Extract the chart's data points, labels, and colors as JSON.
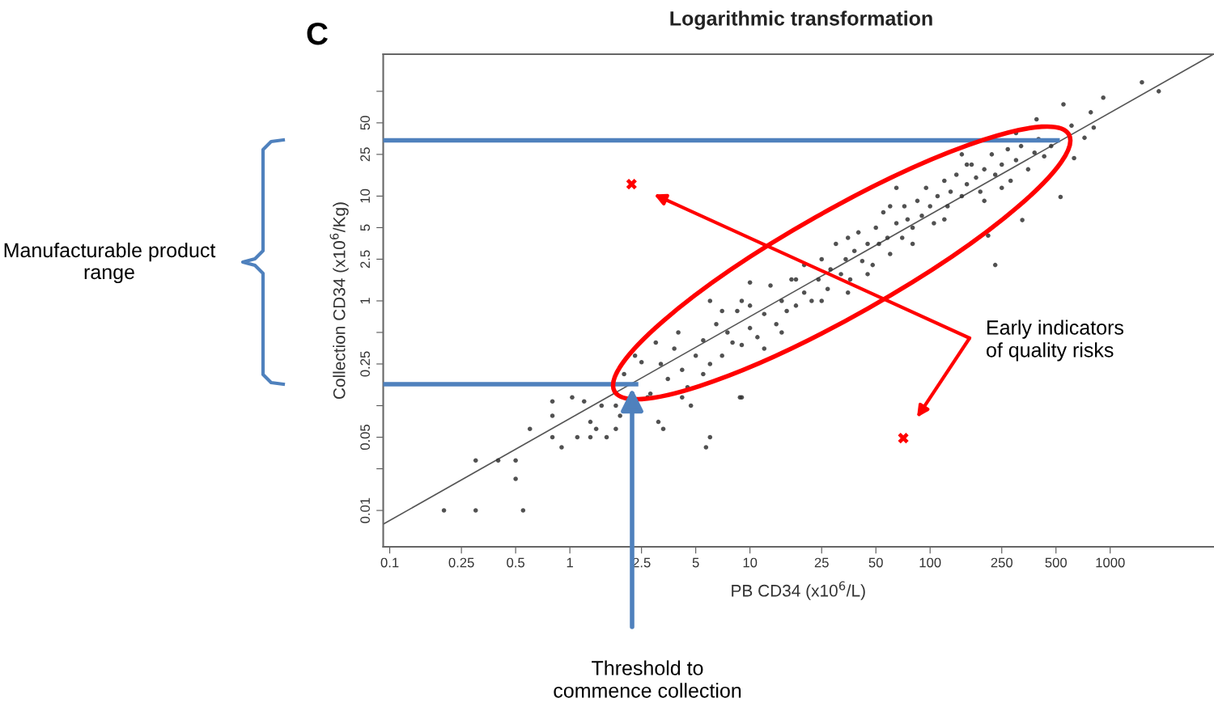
{
  "chart_data": {
    "type": "scatter",
    "title": "Logarithmic transformation",
    "xlabel": "PB CD34 (x10$^{6}$/L)",
    "ylabel": "Collection CD34 (x10$^{6}$/Kg)",
    "log": "xy",
    "grid": false,
    "legend": false,
    "marker": "circle",
    "xlim": [
      0.092,
      3740
    ],
    "ylim": [
      0.0045,
      226
    ],
    "xticks": [
      0.1,
      0.25,
      0.5,
      1,
      2.5,
      5,
      10,
      25,
      50,
      100,
      250,
      500,
      1000
    ],
    "yticks": [
      0.01,
      {
        "value": 0.025,
        "label": null
      },
      0.05,
      {
        "value": 0.1,
        "label": null
      },
      0.25,
      {
        "value": 0.5,
        "label": null
      },
      1,
      2.5,
      5,
      10,
      25,
      50,
      {
        "value": 100,
        "label": null
      }
    ],
    "annotations": [
      "C",
      "Manufacturable product range",
      "Early indicators\nof quality risks",
      "Threshold to\ncommence collection"
    ],
    "series": [
      {
        "color": "#333333",
        "x": [
          0.2,
          0.3,
          0.55,
          0.3,
          0.4,
          0.5,
          0.5,
          0.6,
          0.8,
          0.8,
          0.8,
          0.9,
          1.03,
          1.1,
          1.2,
          1.3,
          1.3,
          1.4,
          1.5,
          1.6,
          1.8,
          1.8,
          1.9,
          3.1,
          3.3,
          5.7,
          6,
          9,
          4.7,
          4.2,
          2.7,
          1500,
          1860,
          915,
          550,
          780,
          390,
          810,
          610,
          720,
          630,
          530,
          230,
          325,
          210,
          8.8,
          2.5,
          2.8,
          3.2,
          3.5,
          4.0,
          4.5,
          5,
          5.5,
          6,
          6.5,
          7,
          7.5,
          8,
          8.5,
          9,
          10,
          10,
          11,
          12,
          13,
          14,
          15,
          16,
          17,
          18,
          20,
          20,
          22,
          24,
          25,
          27,
          28,
          30,
          32,
          34,
          36,
          38,
          40,
          42,
          45,
          48,
          50,
          52,
          55,
          58,
          60,
          65,
          70,
          72,
          75,
          80,
          85,
          90,
          95,
          100,
          105,
          110,
          120,
          125,
          130,
          140,
          150,
          160,
          170,
          180,
          190,
          200,
          220,
          230,
          250,
          270,
          280,
          300,
          320,
          350,
          380,
          400,
          430,
          470,
          2.0,
          2.3,
          3,
          3.8,
          4.2,
          5.5,
          7,
          9,
          12,
          15,
          18,
          25,
          35,
          45,
          60,
          80,
          120,
          160,
          250,
          300,
          150,
          65,
          10,
          6,
          200,
          35
        ],
        "values": [
          0.01,
          0.01,
          0.01,
          0.03,
          0.03,
          0.03,
          0.02,
          0.06,
          0.11,
          0.08,
          0.05,
          0.04,
          0.12,
          0.05,
          0.11,
          0.07,
          0.05,
          0.06,
          0.1,
          0.05,
          0.06,
          0.1,
          0.08,
          0.07,
          0.06,
          0.04,
          0.05,
          0.12,
          0.1,
          0.12,
          0.12,
          122,
          100,
          87,
          75,
          63,
          54,
          45,
          47,
          36,
          23,
          9.8,
          2.2,
          5.9,
          4.2,
          0.12,
          0.26,
          0.13,
          0.25,
          0.18,
          0.5,
          0.15,
          0.3,
          0.42,
          0.25,
          0.6,
          0.3,
          0.5,
          0.4,
          0.8,
          0.38,
          0.55,
          0.9,
          0.45,
          0.75,
          1.4,
          0.6,
          1.0,
          0.8,
          1.6,
          0.9,
          1.2,
          2.2,
          1.0,
          1.6,
          2.5,
          1.3,
          2.0,
          3.5,
          1.8,
          2.5,
          1.6,
          3.0,
          4.5,
          2.4,
          3.5,
          2.2,
          5,
          3.5,
          7,
          4,
          2.8,
          5.5,
          4,
          8,
          6,
          5,
          9,
          6.5,
          12,
          8,
          5.5,
          10,
          14,
          8,
          11,
          16,
          10,
          13,
          20,
          15,
          11,
          18,
          25,
          16,
          20,
          28,
          14,
          22,
          30,
          18,
          26,
          35,
          24,
          30,
          0.2,
          0.3,
          0.4,
          0.35,
          0.22,
          0.2,
          0.8,
          1.0,
          0.35,
          0.5,
          1.6,
          1.0,
          4,
          1.8,
          8,
          3.5,
          6,
          20,
          12,
          40,
          25,
          12,
          1.5,
          1.0,
          9,
          1.2
        ]
      },
      {
        "type": "line",
        "color": "#555555",
        "marker": "none",
        "x": [
          0.092,
          3740
        ],
        "values": [
          0.0074,
          226
        ]
      },
      {
        "type": "line",
        "color": "#4f81bd",
        "marker": "none",
        "x": [
          0.092,
          525
        ],
        "values": [
          34,
          34
        ]
      },
      {
        "type": "line",
        "color": "#4f81bd",
        "marker": "none",
        "x": [
          0.092,
          2.4
        ],
        "values": [
          0.16,
          0.16
        ]
      },
      {
        "type": "scatter",
        "color": "#ff0000",
        "marker": "cross",
        "x": [
          2.2,
          71
        ],
        "values": [
          13,
          0.049
        ]
      }
    ]
  }
}
